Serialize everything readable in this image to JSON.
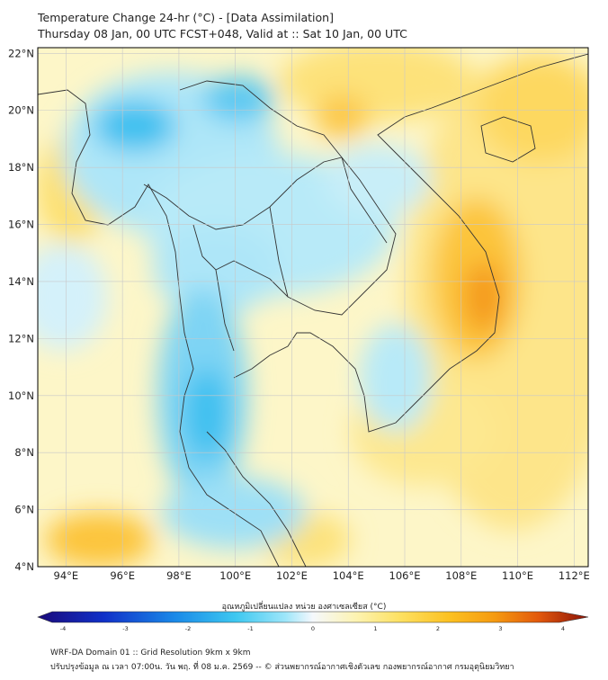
{
  "header": {
    "title_line1": "Temperature Change 24-hr (°C) - [Data Assimilation]",
    "title_line2": "Thursday 08 Jan, 00 UTC FCST+048, Valid at :: Sat 10 Jan, 00 UTC"
  },
  "axes": {
    "lat_labels": [
      "22°N",
      "20°N",
      "18°N",
      "16°N",
      "14°N",
      "12°N",
      "10°N",
      "8°N",
      "6°N",
      "4°N"
    ],
    "lat_values": [
      22,
      20,
      18,
      16,
      14,
      12,
      10,
      8,
      6,
      4
    ],
    "lon_labels": [
      "94°E",
      "96°E",
      "98°E",
      "100°E",
      "102°E",
      "104°E",
      "106°E",
      "108°E",
      "110°E",
      "112°E"
    ],
    "lon_values": [
      94,
      96,
      98,
      100,
      102,
      104,
      106,
      108,
      110,
      112
    ],
    "extent": {
      "lon_min": 93,
      "lon_max": 112.5,
      "lat_min": 4,
      "lat_max": 22.2
    }
  },
  "colorbar": {
    "title": "อุณหภูมิเปลี่ยนแปลง หน่วย องศาเซลเซียส (°C)",
    "tick_labels": [
      "-4",
      "-3",
      "-2",
      "-1",
      "0",
      "1",
      "2",
      "3",
      "4"
    ],
    "tick_values": [
      -4,
      -3,
      -2,
      -1,
      0,
      1,
      2,
      3,
      4
    ],
    "colors": [
      "#1a0a7a",
      "#1030c8",
      "#1a8ae8",
      "#3ec8f0",
      "#9ee6fa",
      "#f5f8fc",
      "#fdf3b0",
      "#fde060",
      "#fcc020",
      "#f59a10",
      "#e2580c",
      "#8a1208"
    ]
  },
  "footer": {
    "line1": "WRF-DA Domain 01 :: Grid Resolution 9km x 9km",
    "line2": "ปรับปรุงข้อมูล ณ เวลา 07:00น. วัน พฤ. ที่ 08 ม.ค. 2569 -- © ส่วนพยากรณ์อากาศเชิงตัวเลข กองพยากรณ์อากาศ กรมอุตุนิยมวิทยา"
  }
}
